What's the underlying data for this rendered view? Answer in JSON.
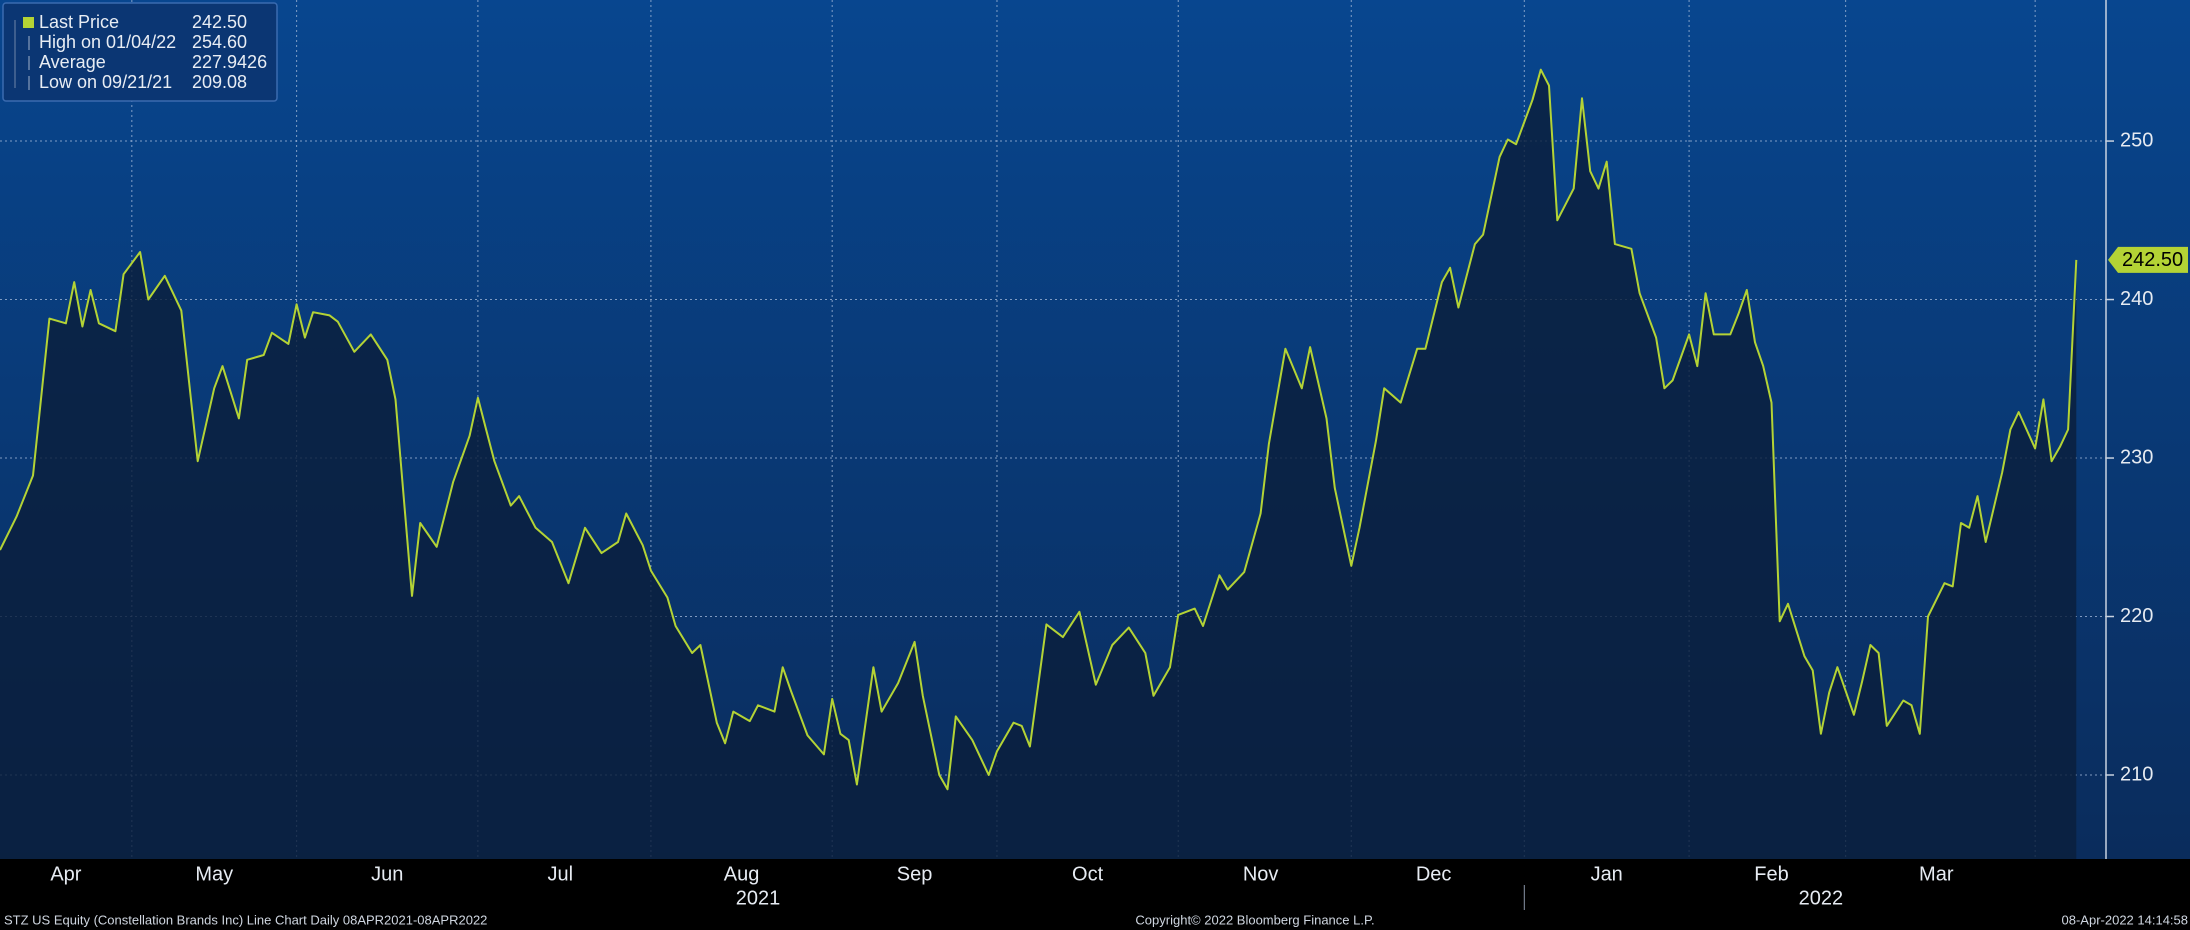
{
  "chart_data": {
    "type": "line",
    "legend": [
      {
        "label": "Last Price",
        "value": "242.50"
      },
      {
        "label": "High on 01/04/22",
        "value": "254.60"
      },
      {
        "label": "Average",
        "value": "227.9426"
      },
      {
        "label": "Low on 09/21/21",
        "value": "209.08"
      }
    ],
    "series": [
      {
        "name": "Last Price",
        "color": "#b4d335",
        "x": [
          0,
          2,
          4,
          6,
          8,
          9,
          10,
          11,
          12,
          14,
          15,
          17,
          18,
          20,
          22,
          24,
          26,
          27,
          29,
          30,
          32,
          33,
          35,
          36,
          37,
          38,
          40,
          41,
          43,
          45,
          47,
          48,
          50,
          51,
          53,
          55,
          57,
          58,
          59,
          60,
          62,
          63,
          65,
          67,
          69,
          71,
          73,
          75,
          76,
          78,
          79,
          81,
          82,
          84,
          85,
          87,
          88,
          89,
          91,
          92,
          94,
          95,
          96,
          98,
          100,
          101,
          102,
          103,
          104,
          106,
          107,
          109,
          111,
          112,
          114,
          115,
          116,
          118,
          120,
          121,
          123,
          124,
          125,
          127,
          129,
          131,
          133,
          135,
          137,
          139,
          140,
          142,
          143,
          145,
          146,
          148,
          149,
          151,
          153,
          154,
          156,
          158,
          159,
          161,
          162,
          164,
          165,
          167,
          168,
          170,
          172,
          173,
          175,
          176,
          177,
          179,
          180,
          182,
          183,
          184,
          186,
          187,
          188,
          189,
          191,
          192,
          193,
          194,
          195,
          196,
          198,
          199,
          201,
          202,
          203,
          205,
          206,
          207,
          208,
          210,
          211,
          212,
          213,
          214,
          215,
          216,
          217,
          219,
          220,
          221,
          222,
          223,
          225,
          226,
          227,
          228,
          229,
          231,
          232,
          233,
          234,
          236,
          237,
          238,
          239,
          240,
          241,
          243,
          244,
          245,
          247,
          248,
          249,
          250,
          251,
          252
        ],
        "values": [
          224.2,
          226.3,
          228.9,
          238.8,
          238.5,
          241.1,
          238.3,
          240.6,
          238.5,
          238.0,
          241.6,
          243.0,
          240.0,
          241.5,
          239.3,
          229.8,
          234.4,
          235.8,
          232.5,
          236.2,
          236.5,
          237.9,
          237.2,
          239.7,
          237.6,
          239.2,
          239.0,
          238.6,
          236.7,
          237.8,
          236.2,
          233.7,
          221.3,
          225.9,
          224.4,
          228.5,
          231.4,
          233.8,
          231.8,
          229.8,
          227.0,
          227.6,
          225.6,
          224.7,
          222.1,
          225.6,
          224.0,
          224.7,
          226.5,
          224.5,
          222.9,
          221.2,
          219.4,
          217.7,
          218.2,
          213.3,
          212.0,
          214.0,
          213.4,
          214.4,
          214.0,
          216.8,
          215.3,
          212.5,
          211.3,
          214.8,
          212.6,
          212.2,
          209.4,
          216.8,
          214.0,
          215.8,
          218.4,
          215.0,
          210.0,
          209.1,
          213.7,
          212.2,
          210.0,
          211.5,
          213.3,
          213.1,
          211.8,
          219.5,
          218.7,
          220.3,
          215.7,
          218.2,
          219.3,
          217.7,
          215.0,
          216.8,
          220.1,
          220.5,
          219.4,
          222.6,
          221.7,
          222.8,
          226.5,
          230.9,
          236.9,
          234.4,
          237.0,
          232.5,
          228.1,
          223.2,
          225.6,
          231.1,
          234.4,
          233.5,
          236.9,
          236.9,
          241.1,
          242.0,
          239.5,
          243.5,
          244.1,
          249.0,
          250.1,
          249.8,
          252.6,
          254.5,
          253.5,
          245.0,
          247.0,
          252.7,
          248.1,
          247.0,
          248.7,
          243.5,
          243.2,
          240.4,
          237.6,
          234.4,
          234.9,
          237.8,
          235.8,
          240.4,
          237.8,
          237.8,
          239.1,
          240.6,
          237.3,
          235.8,
          233.5,
          219.7,
          220.8,
          217.5,
          216.6,
          212.6,
          215.2,
          216.8,
          213.8,
          215.9,
          218.2,
          217.7,
          213.1,
          214.7,
          214.4,
          212.6,
          220.0,
          222.1,
          221.9,
          225.9,
          225.6,
          227.6,
          224.7,
          229.1,
          231.8,
          232.9,
          230.6,
          233.7,
          229.8,
          230.7,
          231.8,
          242.5
        ]
      }
    ],
    "xlim": [
      0,
      255.6
    ],
    "ylim": [
      204.7,
      258.9
    ],
    "yticks": [
      210,
      220,
      230,
      240,
      250
    ],
    "grid": true,
    "month_boundaries": [
      16,
      36,
      58,
      79,
      101,
      121,
      143,
      164,
      185,
      205,
      224,
      247
    ],
    "xticks": [
      {
        "value": 8,
        "label": "Apr"
      },
      {
        "value": 26,
        "label": "May"
      },
      {
        "value": 47,
        "label": "Jun"
      },
      {
        "value": 68,
        "label": "Jul"
      },
      {
        "value": 90,
        "label": "Aug"
      },
      {
        "value": 111,
        "label": "Sep"
      },
      {
        "value": 132,
        "label": "Oct"
      },
      {
        "value": 153,
        "label": "Nov"
      },
      {
        "value": 174,
        "label": "Dec"
      },
      {
        "value": 195,
        "label": "Jan"
      },
      {
        "value": 215,
        "label": "Feb"
      },
      {
        "value": 235,
        "label": "Mar"
      }
    ],
    "year_ticks": [
      {
        "value": 92,
        "label": "2021"
      },
      {
        "value": 221,
        "label": "2022"
      }
    ],
    "year_divider": 185,
    "footer_left": "STZ US Equity (Constellation Brands Inc) Line Chart  Daily 08APR2021-08APR2022",
    "footer_center": "Copyright© 2022 Bloomberg Finance L.P.",
    "footer_right": "08-Apr-2022 14:14:58"
  }
}
